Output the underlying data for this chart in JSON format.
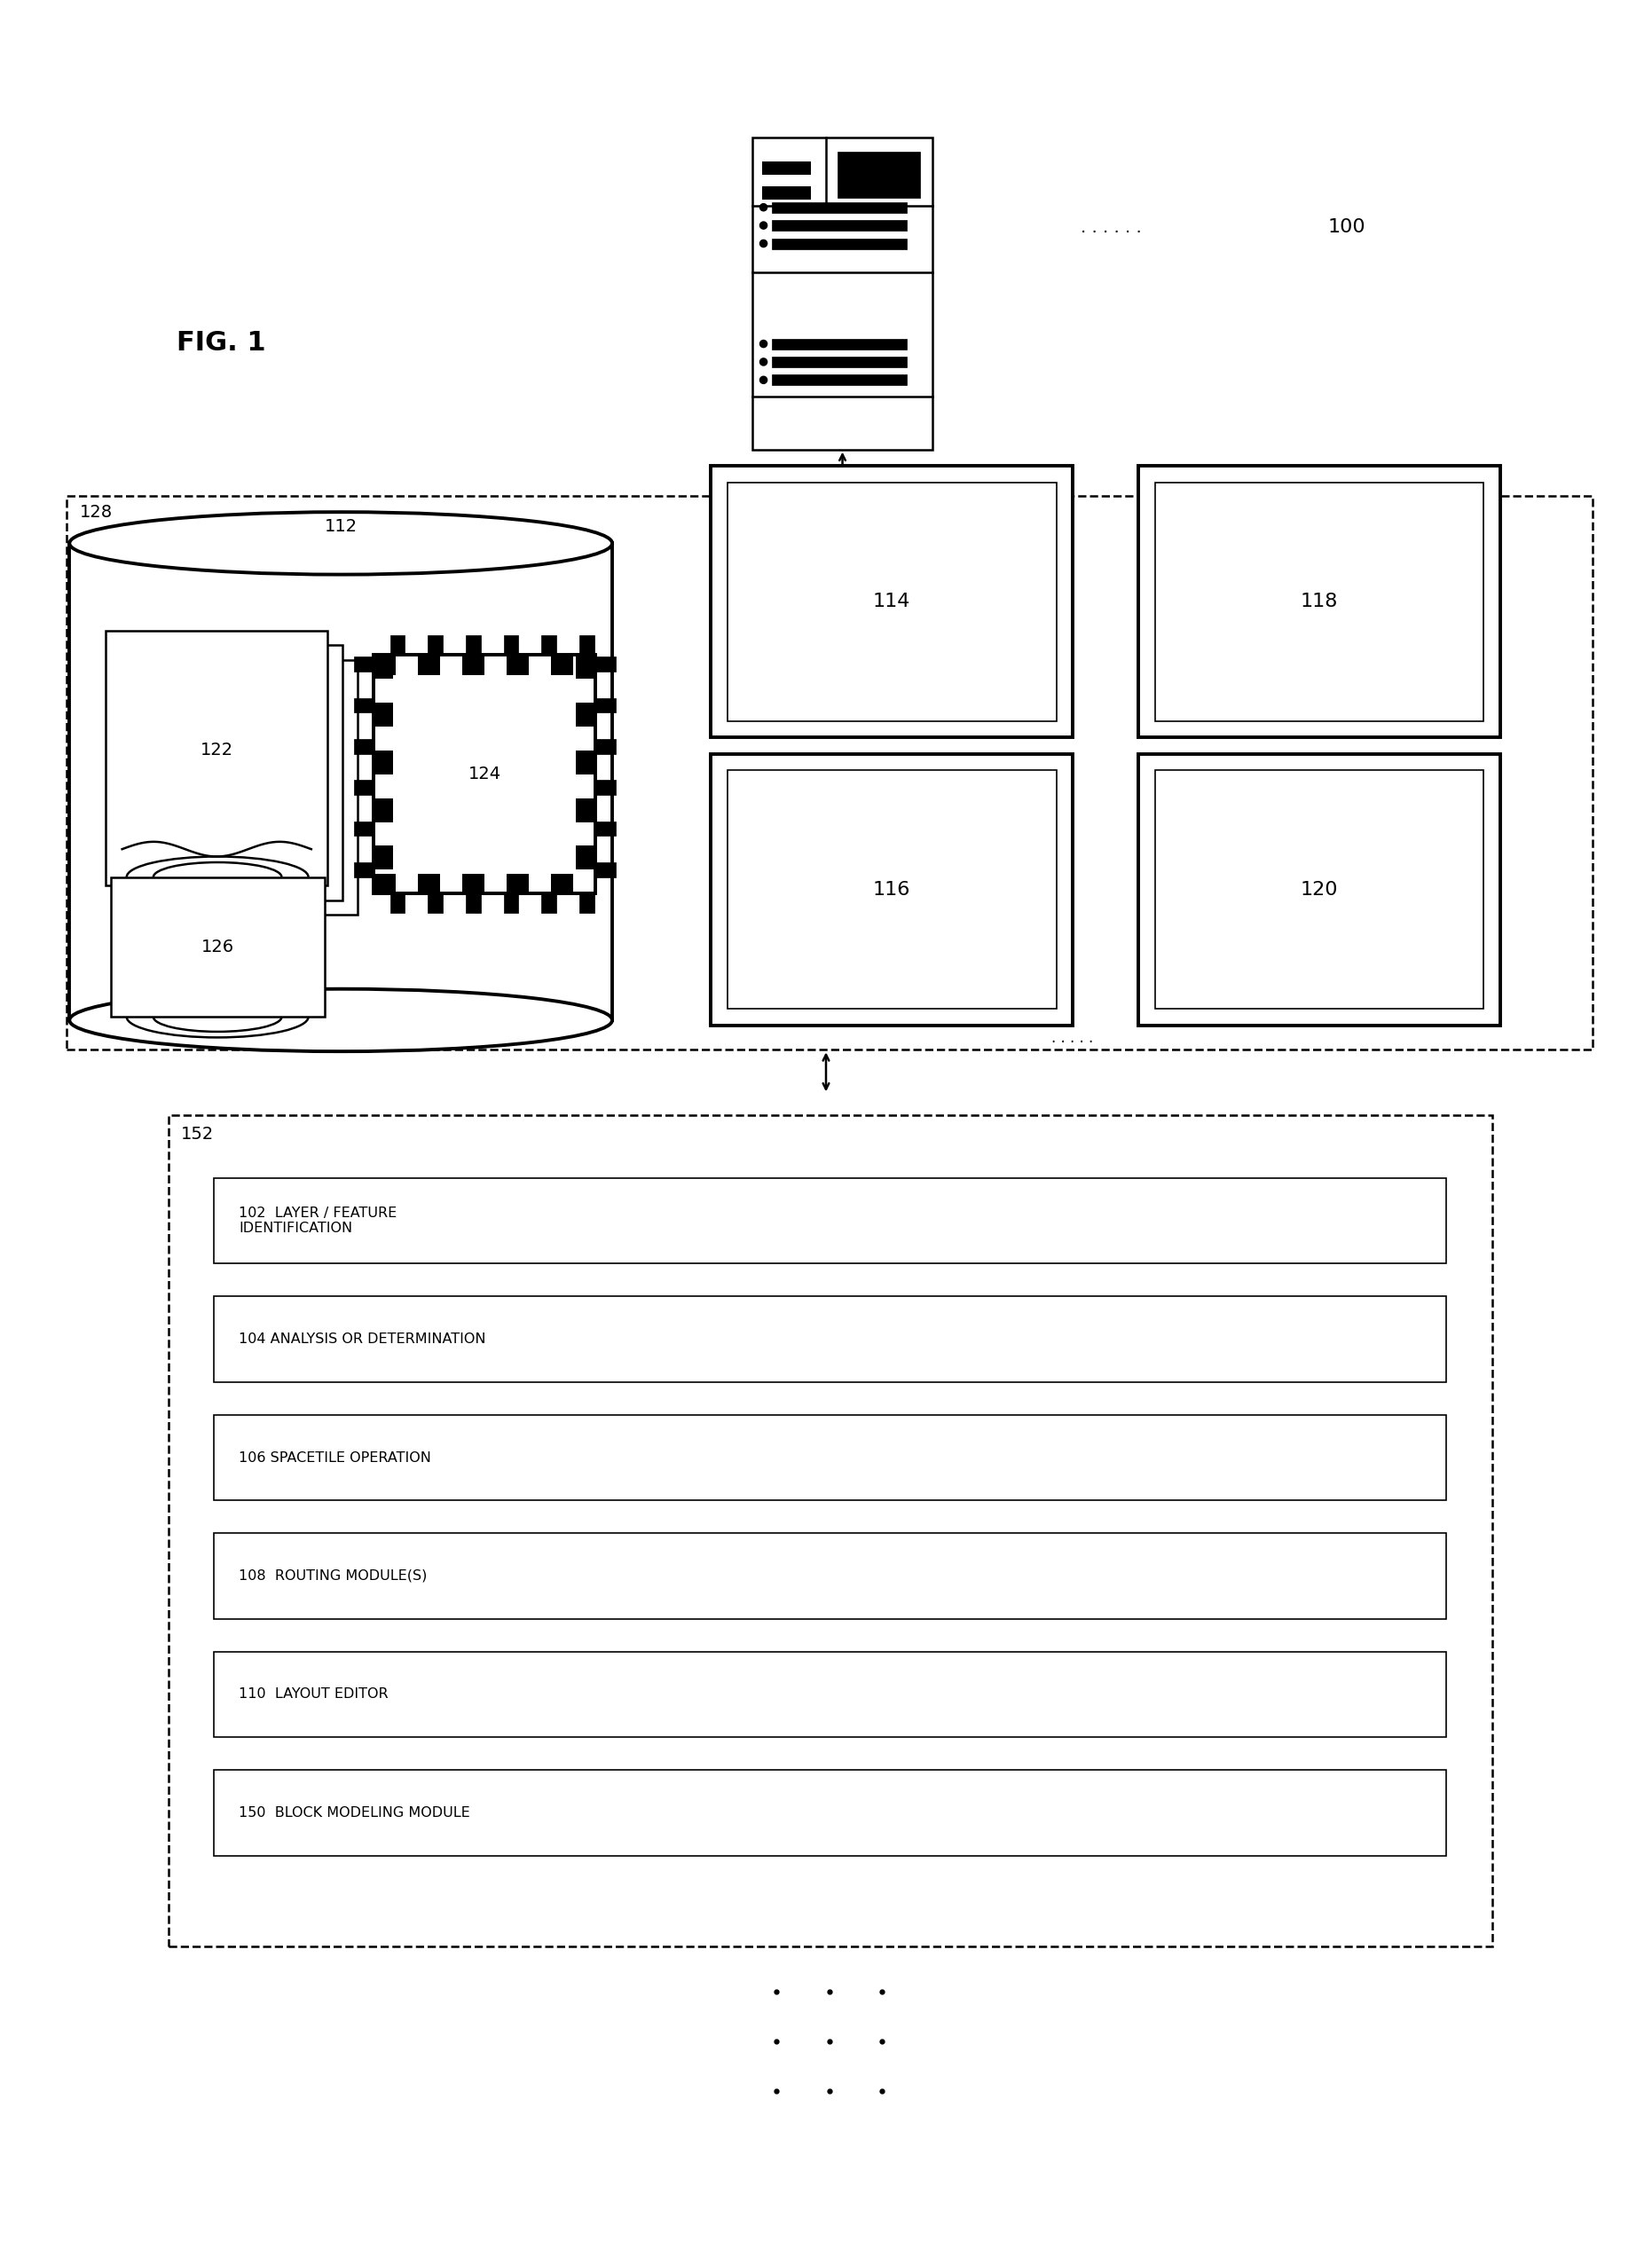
{
  "fig_label": "FIG. 1",
  "label_100": "100",
  "label_128": "128",
  "label_152": "152",
  "label_112": "112",
  "label_122": "122",
  "label_124": "124",
  "label_126": "126",
  "label_114": "114",
  "label_116": "116",
  "label_118": "118",
  "label_120": "120",
  "modules": [
    "102  LAYER / FEATURE\nIDENTIFICATION",
    "104 ANALYSIS OR DETERMINATION",
    "106 SPACETILE OPERATION",
    "108  ROUTING MODULE(S)",
    "110  LAYOUT EDITOR",
    "150  BLOCK MODELING MODULE"
  ],
  "bg_color": "#ffffff",
  "line_color": "#000000"
}
